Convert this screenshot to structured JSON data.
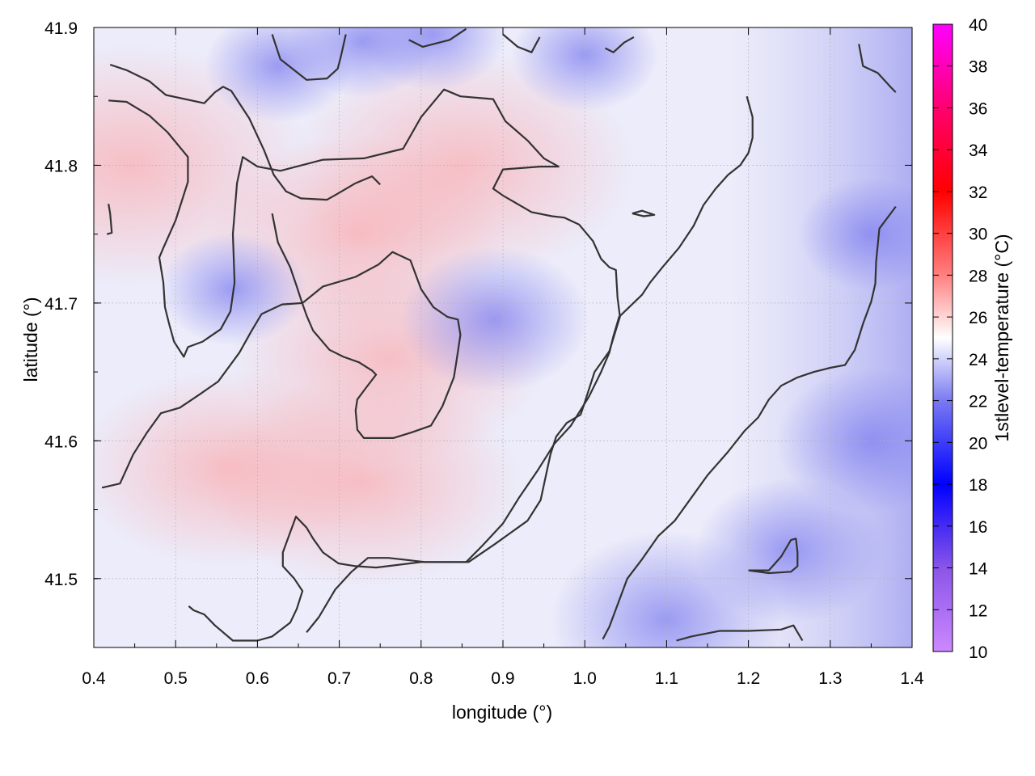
{
  "chart_data": {
    "type": "heatmap",
    "title": "",
    "xlabel": "longitude (°)",
    "ylabel": "latitude (°)",
    "colorbar_label": "1stlevel-temperature (°C)",
    "xlim": [
      0.4,
      1.4
    ],
    "ylim": [
      41.45,
      41.9
    ],
    "xticks": [
      "0.4",
      "0.5",
      "0.6",
      "0.7",
      "0.8",
      "0.9",
      "1.0",
      "1.1",
      "1.2",
      "1.3",
      "1.4"
    ],
    "yticks": [
      "41.5",
      "41.6",
      "41.7",
      "41.8",
      "41.9"
    ],
    "colorbar_range": [
      10,
      40
    ],
    "colorbar_ticks": [
      "10",
      "12",
      "14",
      "16",
      "18",
      "20",
      "22",
      "24",
      "26",
      "28",
      "30",
      "32",
      "34",
      "36",
      "38",
      "40"
    ],
    "grid": true,
    "colorbar_stops": [
      {
        "value": 10,
        "color": "#cc88ff"
      },
      {
        "value": 14,
        "color": "#8a55e8"
      },
      {
        "value": 18,
        "color": "#0000ff"
      },
      {
        "value": 22,
        "color": "#7a7af2"
      },
      {
        "value": 25,
        "color": "#ffffff"
      },
      {
        "value": 28,
        "color": "#ff8080"
      },
      {
        "value": 32,
        "color": "#ff0000"
      },
      {
        "value": 36,
        "color": "#ff0070"
      },
      {
        "value": 40,
        "color": "#ff00ff"
      }
    ],
    "contour_color": "#333333",
    "contours": [
      {
        "name": "western-warm-region",
        "points": [
          [
            0.42,
            41.873
          ],
          [
            0.44,
            41.869
          ],
          [
            0.468,
            41.861
          ],
          [
            0.488,
            41.851
          ],
          [
            0.535,
            41.845
          ],
          [
            0.548,
            41.853
          ],
          [
            0.558,
            41.857
          ],
          [
            0.568,
            41.854
          ],
          [
            0.59,
            41.834
          ],
          [
            0.608,
            41.811
          ],
          [
            0.62,
            41.793
          ],
          [
            0.635,
            41.781
          ],
          [
            0.653,
            41.776
          ],
          [
            0.685,
            41.775
          ],
          [
            0.697,
            41.779
          ],
          [
            0.72,
            41.787
          ],
          [
            0.74,
            41.792
          ],
          [
            0.75,
            41.786
          ]
        ]
      },
      {
        "name": "west-closed-region",
        "points": [
          [
            0.418,
            41.847
          ],
          [
            0.44,
            41.846
          ],
          [
            0.468,
            41.836
          ],
          [
            0.49,
            41.824
          ],
          [
            0.515,
            41.806
          ],
          [
            0.515,
            41.788
          ],
          [
            0.5,
            41.76
          ],
          [
            0.485,
            41.74
          ],
          [
            0.48,
            41.733
          ],
          [
            0.485,
            41.715
          ],
          [
            0.487,
            41.697
          ],
          [
            0.492,
            41.685
          ],
          [
            0.498,
            41.672
          ],
          [
            0.51,
            41.661
          ],
          [
            0.515,
            41.668
          ],
          [
            0.533,
            41.672
          ],
          [
            0.555,
            41.681
          ],
          [
            0.567,
            41.694
          ],
          [
            0.572,
            41.715
          ],
          [
            0.57,
            41.75
          ],
          [
            0.575,
            41.787
          ],
          [
            0.582,
            41.806
          ],
          [
            0.6,
            41.799
          ],
          [
            0.628,
            41.796
          ],
          [
            0.68,
            41.804
          ],
          [
            0.73,
            41.805
          ],
          [
            0.778,
            41.812
          ],
          [
            0.8,
            41.835
          ],
          [
            0.828,
            41.855
          ],
          [
            0.848,
            41.85
          ],
          [
            0.888,
            41.848
          ],
          [
            0.903,
            41.832
          ],
          [
            0.93,
            41.818
          ],
          [
            0.95,
            41.805
          ],
          [
            0.968,
            41.799
          ],
          [
            0.945,
            41.799
          ],
          [
            0.9,
            41.797
          ],
          [
            0.888,
            41.783
          ],
          [
            0.9,
            41.778
          ],
          [
            0.935,
            41.766
          ],
          [
            0.96,
            41.763
          ],
          [
            0.975,
            41.762
          ],
          [
            0.993,
            41.757
          ],
          [
            1.01,
            41.745
          ],
          [
            1.02,
            41.732
          ],
          [
            1.03,
            41.726
          ],
          [
            1.038,
            41.724
          ],
          [
            1.04,
            41.704
          ],
          [
            1.043,
            41.69
          ],
          [
            1.03,
            41.665
          ],
          [
            1.012,
            41.65
          ],
          [
            1.0,
            41.628
          ],
          [
            0.995,
            41.619
          ],
          [
            0.978,
            41.613
          ],
          [
            0.965,
            41.603
          ],
          [
            0.958,
            41.59
          ],
          [
            0.946,
            41.557
          ],
          [
            0.93,
            41.542
          ],
          [
            0.89,
            41.525
          ],
          [
            0.858,
            41.512
          ],
          [
            0.8,
            41.512
          ],
          [
            0.745,
            41.508
          ],
          [
            0.72,
            41.509
          ],
          [
            0.699,
            41.511
          ],
          [
            0.68,
            41.519
          ],
          [
            0.668,
            41.529
          ],
          [
            0.66,
            41.537
          ],
          [
            0.647,
            41.545
          ],
          [
            0.631,
            41.519
          ],
          [
            0.631,
            41.509
          ],
          [
            0.645,
            41.5
          ],
          [
            0.655,
            41.491
          ],
          [
            0.648,
            41.478
          ],
          [
            0.64,
            41.468
          ],
          [
            0.618,
            41.458
          ],
          [
            0.6,
            41.455
          ],
          [
            0.57,
            41.455
          ],
          [
            0.548,
            41.466
          ],
          [
            0.535,
            41.474
          ],
          [
            0.522,
            41.477
          ],
          [
            0.516,
            41.48
          ]
        ]
      },
      {
        "name": "central-basin",
        "points": [
          [
            0.41,
            41.566
          ],
          [
            0.432,
            41.569
          ],
          [
            0.448,
            41.59
          ],
          [
            0.465,
            41.606
          ],
          [
            0.482,
            41.62
          ],
          [
            0.505,
            41.624
          ],
          [
            0.53,
            41.634
          ],
          [
            0.552,
            41.643
          ],
          [
            0.578,
            41.664
          ],
          [
            0.592,
            41.679
          ],
          [
            0.605,
            41.692
          ],
          [
            0.63,
            41.699
          ],
          [
            0.655,
            41.7
          ],
          [
            0.68,
            41.712
          ],
          [
            0.72,
            41.719
          ],
          [
            0.748,
            41.728
          ],
          [
            0.765,
            41.737
          ],
          [
            0.787,
            41.731
          ],
          [
            0.8,
            41.71
          ],
          [
            0.815,
            41.697
          ],
          [
            0.832,
            41.69
          ],
          [
            0.845,
            41.688
          ],
          [
            0.848,
            41.677
          ],
          [
            0.843,
            41.657
          ],
          [
            0.84,
            41.646
          ],
          [
            0.826,
            41.625
          ],
          [
            0.812,
            41.611
          ],
          [
            0.788,
            41.606
          ],
          [
            0.766,
            41.602
          ],
          [
            0.74,
            41.602
          ],
          [
            0.73,
            41.602
          ],
          [
            0.722,
            41.608
          ],
          [
            0.72,
            41.622
          ],
          [
            0.722,
            41.63
          ],
          [
            0.732,
            41.638
          ],
          [
            0.745,
            41.648
          ],
          [
            0.74,
            41.651
          ],
          [
            0.724,
            41.657
          ],
          [
            0.705,
            41.661
          ],
          [
            0.688,
            41.666
          ],
          [
            0.668,
            41.68
          ],
          [
            0.66,
            41.691
          ],
          [
            0.653,
            41.703
          ],
          [
            0.648,
            41.712
          ],
          [
            0.64,
            41.726
          ],
          [
            0.625,
            41.744
          ],
          [
            0.618,
            41.765
          ]
        ]
      },
      {
        "name": "eastern-band",
        "points": [
          [
            0.66,
            41.461
          ],
          [
            0.675,
            41.472
          ],
          [
            0.695,
            41.492
          ],
          [
            0.715,
            41.505
          ],
          [
            0.735,
            41.515
          ],
          [
            0.76,
            41.515
          ],
          [
            0.805,
            41.512
          ],
          [
            0.855,
            41.512
          ],
          [
            0.875,
            41.524
          ],
          [
            0.9,
            41.54
          ],
          [
            0.92,
            41.559
          ],
          [
            0.943,
            41.579
          ],
          [
            0.963,
            41.598
          ],
          [
            0.983,
            41.611
          ],
          [
            1.005,
            41.632
          ],
          [
            1.02,
            41.65
          ],
          [
            1.03,
            41.664
          ],
          [
            1.035,
            41.676
          ],
          [
            1.042,
            41.69
          ],
          [
            1.07,
            41.706
          ],
          [
            1.08,
            41.715
          ],
          [
            1.095,
            41.726
          ],
          [
            1.115,
            41.74
          ],
          [
            1.133,
            41.756
          ],
          [
            1.145,
            41.771
          ],
          [
            1.16,
            41.783
          ],
          [
            1.175,
            41.793
          ],
          [
            1.19,
            41.8
          ],
          [
            1.2,
            41.809
          ],
          [
            1.205,
            41.82
          ],
          [
            1.205,
            41.835
          ],
          [
            1.198,
            41.85
          ]
        ]
      },
      {
        "name": "far-east-band",
        "points": [
          [
            1.022,
            41.456
          ],
          [
            1.03,
            41.465
          ],
          [
            1.04,
            41.481
          ],
          [
            1.052,
            41.5
          ],
          [
            1.07,
            41.514
          ],
          [
            1.09,
            41.531
          ],
          [
            1.11,
            41.542
          ],
          [
            1.127,
            41.556
          ],
          [
            1.15,
            41.575
          ],
          [
            1.175,
            41.592
          ],
          [
            1.195,
            41.607
          ],
          [
            1.212,
            41.617
          ],
          [
            1.225,
            41.63
          ],
          [
            1.24,
            41.64
          ],
          [
            1.26,
            41.646
          ],
          [
            1.28,
            41.65
          ],
          [
            1.3,
            41.653
          ],
          [
            1.318,
            41.655
          ],
          [
            1.33,
            41.666
          ],
          [
            1.34,
            41.685
          ],
          [
            1.35,
            41.701
          ],
          [
            1.355,
            41.714
          ],
          [
            1.356,
            41.73
          ],
          [
            1.36,
            41.754
          ],
          [
            1.38,
            41.77
          ]
        ]
      },
      {
        "name": "south-closed-small",
        "points": [
          [
            1.2,
            41.506
          ],
          [
            1.225,
            41.504
          ],
          [
            1.252,
            41.505
          ],
          [
            1.26,
            41.509
          ],
          [
            1.26,
            41.519
          ],
          [
            1.258,
            41.529
          ],
          [
            1.252,
            41.528
          ],
          [
            1.24,
            41.516
          ],
          [
            1.225,
            41.506
          ],
          [
            1.2,
            41.506
          ]
        ]
      },
      {
        "name": "south-edge",
        "points": [
          [
            1.112,
            41.455
          ],
          [
            1.13,
            41.458
          ],
          [
            1.165,
            41.462
          ],
          [
            1.2,
            41.462
          ],
          [
            1.24,
            41.463
          ],
          [
            1.255,
            41.466
          ],
          [
            1.266,
            41.455
          ]
        ]
      },
      {
        "name": "north-bump",
        "points": [
          [
            0.618,
            41.895
          ],
          [
            0.628,
            41.877
          ],
          [
            0.66,
            41.862
          ],
          [
            0.685,
            41.863
          ],
          [
            0.698,
            41.87
          ],
          [
            0.702,
            41.879
          ],
          [
            0.708,
            41.895
          ]
        ]
      },
      {
        "name": "north-edge-1",
        "points": [
          [
            0.785,
            41.891
          ],
          [
            0.802,
            41.886
          ],
          [
            0.835,
            41.891
          ],
          [
            0.855,
            41.899
          ]
        ]
      },
      {
        "name": "north-edge-2",
        "points": [
          [
            0.9,
            41.895
          ],
          [
            0.918,
            41.886
          ],
          [
            0.935,
            41.882
          ],
          [
            0.945,
            41.893
          ]
        ]
      },
      {
        "name": "north-edge-3",
        "points": [
          [
            1.025,
            41.885
          ],
          [
            1.035,
            41.882
          ],
          [
            1.048,
            41.889
          ],
          [
            1.06,
            41.893
          ]
        ]
      },
      {
        "name": "north-east-corner",
        "points": [
          [
            1.335,
            41.888
          ],
          [
            1.34,
            41.872
          ],
          [
            1.358,
            41.867
          ],
          [
            1.375,
            41.856
          ],
          [
            1.38,
            41.853
          ]
        ]
      },
      {
        "name": "tiny-loop",
        "points": [
          [
            1.058,
            41.765
          ],
          [
            1.07,
            41.767
          ],
          [
            1.085,
            41.764
          ],
          [
            1.072,
            41.763
          ],
          [
            1.058,
            41.765
          ]
        ]
      },
      {
        "name": "west-edge-nub",
        "points": [
          [
            0.418,
            41.772
          ],
          [
            0.42,
            41.765
          ],
          [
            0.422,
            41.751
          ],
          [
            0.416,
            41.75
          ]
        ]
      }
    ],
    "cold_spots": [
      {
        "lon": 0.625,
        "lat": 41.872,
        "value": 23
      },
      {
        "lon": 0.728,
        "lat": 41.89,
        "value": 23
      },
      {
        "lon": 0.815,
        "lat": 41.895,
        "value": 23
      },
      {
        "lon": 0.89,
        "lat": 41.688,
        "value": 22
      },
      {
        "lon": 0.57,
        "lat": 41.71,
        "value": 23
      },
      {
        "lon": 1.35,
        "lat": 41.6,
        "value": 22
      },
      {
        "lon": 1.25,
        "lat": 41.52,
        "value": 22
      },
      {
        "lon": 1.1,
        "lat": 41.47,
        "value": 21
      },
      {
        "lon": 1.35,
        "lat": 41.75,
        "value": 23
      },
      {
        "lon": 1.0,
        "lat": 41.88,
        "value": 23
      }
    ],
    "warm_spots": [
      {
        "lon": 0.445,
        "lat": 41.8,
        "value": 27
      },
      {
        "lon": 0.85,
        "lat": 41.8,
        "value": 26.8
      },
      {
        "lon": 0.73,
        "lat": 41.57,
        "value": 26.5
      },
      {
        "lon": 0.56,
        "lat": 41.58,
        "value": 26.3
      },
      {
        "lon": 0.72,
        "lat": 41.75,
        "value": 26.3
      },
      {
        "lon": 0.76,
        "lat": 41.66,
        "value": 26.5
      }
    ]
  }
}
